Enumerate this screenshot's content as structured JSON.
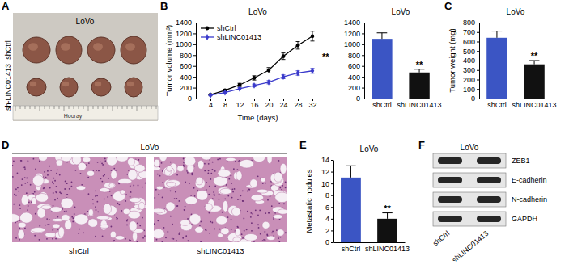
{
  "chart_data": [
    {
      "panel": "B",
      "type": "line",
      "title": "LoVo",
      "x_label": "Time (days)",
      "y_label": "Tumor volume (mm³)",
      "x": [
        4,
        8,
        12,
        16,
        20,
        24,
        28,
        32
      ],
      "series": [
        {
          "name": "shCtrl",
          "color": "#000000",
          "marker": "circle",
          "values": [
            70,
            150,
            250,
            380,
            520,
            780,
            980,
            1150
          ],
          "errors": [
            10,
            20,
            30,
            40,
            50,
            60,
            70,
            90
          ]
        },
        {
          "name": "shLINC01413",
          "color": "#3a3acb",
          "marker": "diamond",
          "values": [
            60,
            110,
            180,
            240,
            300,
            400,
            470,
            510
          ],
          "errors": [
            10,
            15,
            20,
            25,
            30,
            35,
            40,
            45
          ]
        }
      ],
      "xlim": [
        0,
        34
      ],
      "xticks": [
        4,
        8,
        12,
        16,
        20,
        24,
        28,
        32
      ],
      "ylim": [
        0,
        1400
      ],
      "yticks": [
        0,
        200,
        400,
        600,
        800,
        1000,
        1200,
        1400
      ],
      "legend": "upper left",
      "annotation": "**"
    },
    {
      "type": "bar",
      "title": "LoVo",
      "categories": [
        "shCtrl",
        "shLINC01413"
      ],
      "values": [
        1100,
        480
      ],
      "errors": [
        110,
        60
      ],
      "colors": [
        "#3b55c4",
        "#111111"
      ],
      "ylim": [
        0,
        1400
      ],
      "yticks": [
        0,
        200,
        400,
        600,
        800,
        1000,
        1200,
        1400
      ],
      "annotation": "**"
    },
    {
      "panel": "C",
      "type": "bar",
      "title": "LoVo",
      "y_label": "Tumor weight (mg)",
      "categories": [
        "shCtrl",
        "shLINC01413"
      ],
      "values": [
        640,
        360
      ],
      "errors": [
        70,
        40
      ],
      "colors": [
        "#3b55c4",
        "#111111"
      ],
      "ylim": [
        0,
        800
      ],
      "yticks": [
        0,
        100,
        200,
        300,
        400,
        500,
        600,
        700,
        800
      ],
      "annotation": "**"
    },
    {
      "panel": "E",
      "type": "bar",
      "title": "LoVo",
      "y_label": "Metastatic nodules",
      "categories": [
        "shCtrl",
        "shLINC01413"
      ],
      "values": [
        11,
        4
      ],
      "errors": [
        2,
        1
      ],
      "colors": [
        "#3b55c4",
        "#111111"
      ],
      "ylim": [
        0,
        14
      ],
      "yticks": [
        0,
        2,
        4,
        6,
        8,
        10,
        12,
        14
      ],
      "annotation": "**"
    }
  ],
  "images": {
    "A": {
      "panel": "A",
      "title": "LoVo",
      "rows": [
        "shCtrl",
        "sh-LINC01413"
      ],
      "ruler_text": "Hooray"
    },
    "D": {
      "panel": "D",
      "title": "LoVo",
      "labels": [
        "shCtrl",
        "shLINC01413"
      ]
    },
    "F": {
      "panel": "F",
      "title": "LoVo",
      "proteins": [
        "ZEB1",
        "E-cadherin",
        "N-cadherin",
        "GAPDH"
      ],
      "lanes": [
        "shCtrl",
        "shLINC01413"
      ]
    }
  }
}
